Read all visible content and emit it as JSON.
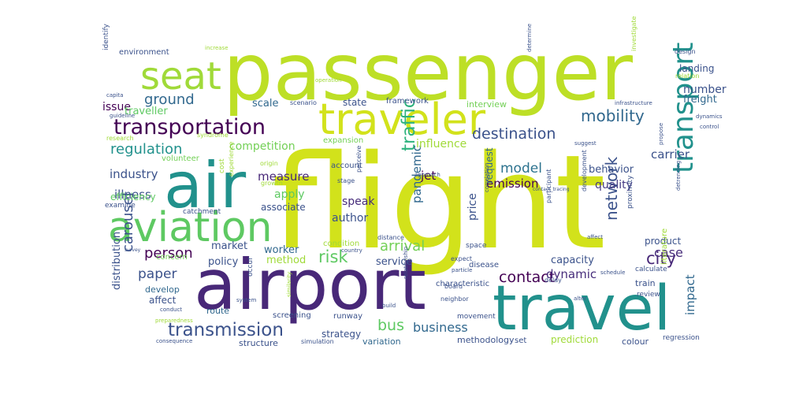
{
  "words": [
    {
      "text": "passenger",
      "color": "#bddf26"
    },
    {
      "text": "flight",
      "color": "#d2e21b"
    },
    {
      "text": "air",
      "color": "#21918c"
    },
    {
      "text": "airport",
      "color": "#482878"
    },
    {
      "text": "travel",
      "color": "#21918c"
    },
    {
      "text": "aviation",
      "color": "#5ec962"
    },
    {
      "text": "traveler",
      "color": "#d2e21b"
    },
    {
      "text": "seat",
      "color": "#a0da39"
    },
    {
      "text": "transportation",
      "color": "#440154"
    },
    {
      "text": "transport",
      "color": "#21918c"
    },
    {
      "text": "traffic",
      "color": "#2db27d"
    },
    {
      "text": "destination",
      "color": "#3b528b"
    },
    {
      "text": "mobility",
      "color": "#31688e"
    },
    {
      "text": "transmission",
      "color": "#3b528b"
    },
    {
      "text": "contact",
      "color": "#440154"
    },
    {
      "text": "network",
      "color": "#3b528b"
    },
    {
      "text": "city",
      "color": "#482878"
    },
    {
      "text": "ground",
      "color": "#31688e"
    },
    {
      "text": "regulation",
      "color": "#21918c"
    },
    {
      "text": "carousel",
      "color": "#3b528b"
    },
    {
      "text": "risk",
      "color": "#5ec962"
    },
    {
      "text": "bus",
      "color": "#5ec962"
    },
    {
      "text": "business",
      "color": "#31688e"
    },
    {
      "text": "arrival",
      "color": "#73d056"
    },
    {
      "text": "case",
      "color": "#472d7b"
    },
    {
      "text": "person",
      "color": "#440154"
    },
    {
      "text": "paper",
      "color": "#3b528b"
    },
    {
      "text": "pandemic",
      "color": "#31688e"
    },
    {
      "text": "model",
      "color": "#2c728e"
    },
    {
      "text": "impact",
      "color": "#31688e"
    },
    {
      "text": "carrier",
      "color": "#3b528b"
    },
    {
      "text": "competition",
      "color": "#73d056"
    },
    {
      "text": "influence",
      "color": "#a0da39"
    },
    {
      "text": "emission",
      "color": "#440154"
    },
    {
      "text": "quality",
      "color": "#443983"
    },
    {
      "text": "price",
      "color": "#3b528b"
    },
    {
      "text": "request",
      "color": "#31688e"
    },
    {
      "text": "capacity",
      "color": "#3b528b"
    },
    {
      "text": "dynamic",
      "color": "#472d7b"
    },
    {
      "text": "behavior",
      "color": "#3b528b"
    },
    {
      "text": "author",
      "color": "#3b528b"
    },
    {
      "text": "speak",
      "color": "#472d7b"
    },
    {
      "text": "jet",
      "color": "#440154"
    },
    {
      "text": "measure",
      "color": "#482878"
    },
    {
      "text": "apply",
      "color": "#5ec962"
    },
    {
      "text": "industry",
      "color": "#3b528b"
    },
    {
      "text": "illness",
      "color": "#3b528b"
    },
    {
      "text": "worker",
      "color": "#31688e"
    },
    {
      "text": "market",
      "color": "#3b528b"
    },
    {
      "text": "policy",
      "color": "#3b528b"
    },
    {
      "text": "method",
      "color": "#a0da39"
    },
    {
      "text": "service",
      "color": "#3b528b"
    },
    {
      "text": "number",
      "color": "#3b528b"
    },
    {
      "text": "freight",
      "color": "#31688e"
    },
    {
      "text": "landing",
      "color": "#3b528b"
    },
    {
      "text": "state",
      "color": "#3b528b"
    },
    {
      "text": "scale",
      "color": "#31688e"
    },
    {
      "text": "issue",
      "color": "#440154"
    },
    {
      "text": "traveller",
      "color": "#5ec962"
    },
    {
      "text": "associate",
      "color": "#3b528b"
    },
    {
      "text": "product",
      "color": "#3b528b"
    },
    {
      "text": "distribution",
      "color": "#3b528b"
    },
    {
      "text": "strategy",
      "color": "#3b528b"
    },
    {
      "text": "structure",
      "color": "#3b528b"
    },
    {
      "text": "variation",
      "color": "#31688e"
    },
    {
      "text": "prediction",
      "color": "#a0da39"
    },
    {
      "text": "colour",
      "color": "#3b528b"
    },
    {
      "text": "methodology",
      "color": "#3b528b"
    },
    {
      "text": "affect",
      "color": "#3b528b"
    },
    {
      "text": "develop",
      "color": "#31688e"
    },
    {
      "text": "train",
      "color": "#3b528b"
    },
    {
      "text": "route",
      "color": "#31688e"
    },
    {
      "text": "runway",
      "color": "#3b528b"
    },
    {
      "text": "screening",
      "color": "#3b528b"
    },
    {
      "text": "environment",
      "color": "#3b528b"
    },
    {
      "text": "framework",
      "color": "#3b528b"
    },
    {
      "text": "interview",
      "color": "#73d056"
    },
    {
      "text": "efficiency",
      "color": "#5ec962"
    },
    {
      "text": "volunteer",
      "color": "#73d056"
    },
    {
      "text": "expansion",
      "color": "#73d056"
    },
    {
      "text": "account",
      "color": "#3b528b"
    },
    {
      "text": "condition",
      "color": "#a0da39"
    },
    {
      "text": "concern",
      "color": "#73d056"
    },
    {
      "text": "disease",
      "color": "#3b528b"
    },
    {
      "text": "characteristic",
      "color": "#3b528b"
    },
    {
      "text": "movement",
      "color": "#3b528b"
    },
    {
      "text": "space",
      "color": "#3b528b"
    },
    {
      "text": "literature",
      "color": "#a0da39"
    },
    {
      "text": "review",
      "color": "#3b528b"
    },
    {
      "text": "set",
      "color": "#3b528b"
    },
    {
      "text": "regression",
      "color": "#3b528b"
    },
    {
      "text": "delay",
      "color": "#3b528b"
    },
    {
      "text": "design",
      "color": "#3b528b"
    },
    {
      "text": "identify",
      "color": "#3b528b"
    },
    {
      "text": "scenario",
      "color": "#3b528b"
    },
    {
      "text": "distance",
      "color": "#3b528b"
    },
    {
      "text": "occur",
      "color": "#3b528b"
    },
    {
      "text": "examine",
      "color": "#3b528b"
    },
    {
      "text": "catchment",
      "color": "#3b528b"
    },
    {
      "text": "calculate",
      "color": "#3b528b"
    },
    {
      "text": "participant",
      "color": "#3b528b"
    },
    {
      "text": "development",
      "color": "#3b528b"
    },
    {
      "text": "proximity",
      "color": "#3b528b"
    },
    {
      "text": "relation",
      "color": "#a0da39"
    },
    {
      "text": "investigate",
      "color": "#a0da39"
    },
    {
      "text": "determine",
      "color": "#3b528b"
    },
    {
      "text": "neighbor",
      "color": "#3b528b"
    },
    {
      "text": "approach",
      "color": "#3b528b"
    },
    {
      "text": "growth",
      "color": "#a0da39"
    },
    {
      "text": "stage",
      "color": "#3b528b"
    },
    {
      "text": "perceive",
      "color": "#3b528b"
    },
    {
      "text": "experience",
      "color": "#a0da39"
    },
    {
      "text": "cost",
      "color": "#a0da39"
    },
    {
      "text": "board",
      "color": "#3b528b"
    },
    {
      "text": "expect",
      "color": "#3b528b"
    },
    {
      "text": "particle",
      "color": "#3b528b"
    },
    {
      "text": "origin",
      "color": "#a0da39"
    },
    {
      "text": "country",
      "color": "#3b528b"
    },
    {
      "text": "correlation",
      "color": "#3b528b"
    },
    {
      "text": "suggest",
      "color": "#3b528b"
    },
    {
      "text": "operation",
      "color": "#a0da39"
    },
    {
      "text": "increase",
      "color": "#a0da39"
    },
    {
      "text": "capita",
      "color": "#3b528b"
    },
    {
      "text": "guideline",
      "color": "#3b528b"
    },
    {
      "text": "research",
      "color": "#a0da39"
    },
    {
      "text": "syndrome",
      "color": "#a0da39"
    },
    {
      "text": "propose",
      "color": "#3b528b"
    },
    {
      "text": "detrending",
      "color": "#3b528b"
    },
    {
      "text": "contact_tracing",
      "color": "#3b528b"
    },
    {
      "text": "schedule",
      "color": "#3b528b"
    },
    {
      "text": "infrastructure",
      "color": "#3b528b"
    },
    {
      "text": "relationship",
      "color": "#3b528b"
    },
    {
      "text": "similarity",
      "color": "#a0da39"
    },
    {
      "text": "simulation",
      "color": "#3b528b"
    },
    {
      "text": "consequence",
      "color": "#3b528b"
    },
    {
      "text": "preparedness",
      "color": "#a0da39"
    },
    {
      "text": "conduct",
      "color": "#3b528b"
    },
    {
      "text": "system",
      "color": "#3b528b"
    },
    {
      "text": "survey",
      "color": "#3b528b"
    },
    {
      "text": "build",
      "color": "#3b528b"
    },
    {
      "text": "control",
      "color": "#3b528b"
    },
    {
      "text": "dynamics",
      "color": "#3b528b"
    },
    {
      "text": "affect",
      "color": "#3b528b"
    },
    {
      "text": "alter",
      "color": "#3b528b"
    }
  ]
}
